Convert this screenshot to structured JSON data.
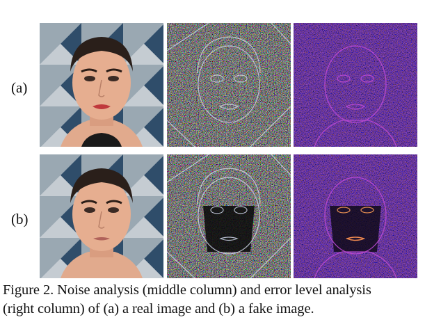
{
  "figure": {
    "rows": [
      {
        "label": "(a)"
      },
      {
        "label": "(b)"
      }
    ],
    "caption": {
      "line1": "Figure 2. Noise analysis (middle column) and error level analysis",
      "line2": "(right column) of (a) a real image and (b) a fake image."
    }
  }
}
